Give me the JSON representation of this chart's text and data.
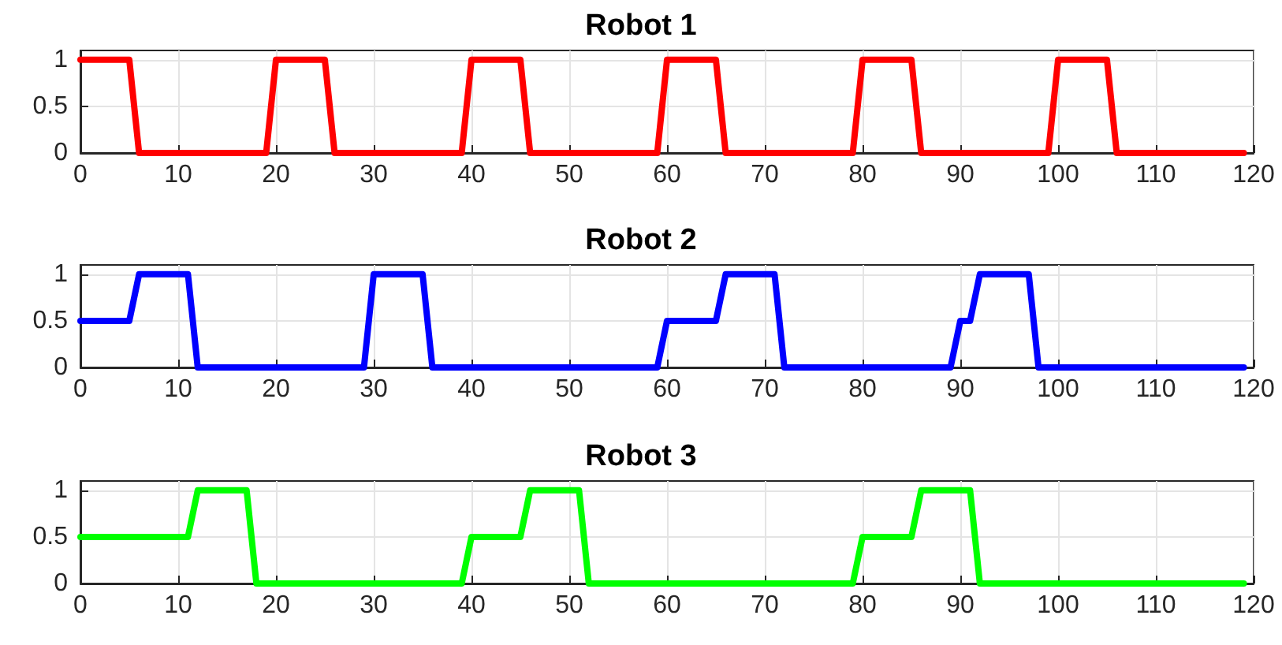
{
  "chart_data": [
    {
      "type": "line",
      "title": "Robot 1",
      "x": [
        0,
        5,
        6,
        19,
        20,
        25,
        26,
        39,
        40,
        45,
        46,
        59,
        60,
        65,
        66,
        79,
        80,
        85,
        86,
        99,
        100,
        105,
        106,
        119
      ],
      "series": [
        {
          "color": "#ff0000",
          "values": [
            1,
            1,
            0,
            0,
            1,
            1,
            0,
            0,
            1,
            1,
            0,
            0,
            1,
            1,
            0,
            0,
            1,
            1,
            0,
            0,
            1,
            1,
            0,
            0
          ]
        }
      ],
      "xlim": [
        0,
        120
      ],
      "xticks": [
        0,
        10,
        20,
        30,
        40,
        50,
        60,
        70,
        80,
        90,
        100,
        110,
        120
      ],
      "ylim": [
        0,
        1.1
      ],
      "yticks": [
        0,
        0.5,
        1
      ],
      "grid": true,
      "marker": "none",
      "line_style": "solid"
    },
    {
      "type": "line",
      "title": "Robot 2",
      "x": [
        0,
        5,
        6,
        11,
        12,
        29,
        30,
        35,
        36,
        59,
        60,
        65,
        66,
        71,
        72,
        89,
        90,
        91,
        92,
        97,
        98,
        119
      ],
      "series": [
        {
          "color": "#0000ff",
          "values": [
            0.5,
            0.5,
            1,
            1,
            0,
            0,
            1,
            1,
            0,
            0,
            0.5,
            0.5,
            1,
            1,
            0,
            0,
            0.5,
            0.5,
            1,
            1,
            0,
            0
          ]
        }
      ],
      "xlim": [
        0,
        120
      ],
      "xticks": [
        0,
        10,
        20,
        30,
        40,
        50,
        60,
        70,
        80,
        90,
        100,
        110,
        120
      ],
      "ylim": [
        0,
        1.1
      ],
      "yticks": [
        0,
        0.5,
        1
      ],
      "grid": true,
      "marker": "none",
      "line_style": "solid"
    },
    {
      "type": "line",
      "title": "Robot 3",
      "x": [
        0,
        11,
        12,
        17,
        18,
        39,
        40,
        45,
        46,
        51,
        52,
        79,
        80,
        85,
        86,
        91,
        92,
        119
      ],
      "series": [
        {
          "color": "#00ff00",
          "values": [
            0.5,
            0.5,
            1,
            1,
            0,
            0,
            0.5,
            0.5,
            1,
            1,
            0,
            0,
            0.5,
            0.5,
            1,
            1,
            0,
            0
          ]
        }
      ],
      "xlim": [
        0,
        120
      ],
      "xticks": [
        0,
        10,
        20,
        30,
        40,
        50,
        60,
        70,
        80,
        90,
        100,
        110,
        120
      ],
      "ylim": [
        0,
        1.1
      ],
      "yticks": [
        0,
        0.5,
        1
      ],
      "grid": true,
      "marker": "none",
      "line_style": "solid"
    }
  ]
}
